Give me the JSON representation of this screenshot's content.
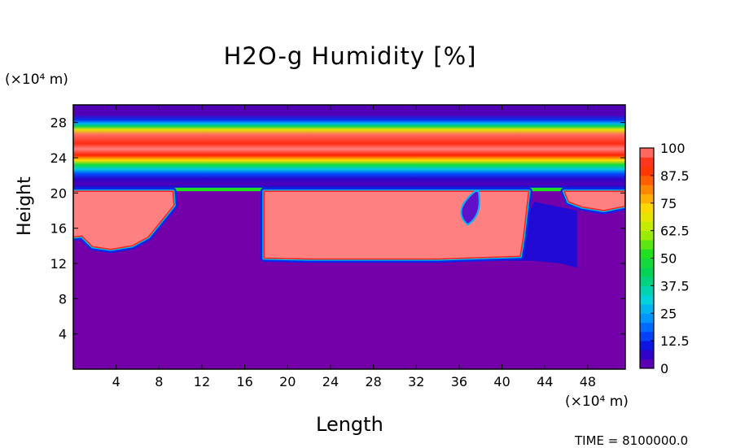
{
  "chart_data": {
    "type": "heatmap",
    "title": "H2O-g Humidity [%]",
    "xlabel": "Length",
    "ylabel": "Height",
    "x_unit_label": "(×10⁴ m)",
    "y_unit_label": "(×10⁴ m)",
    "xlim": [
      0,
      51.5
    ],
    "ylim": [
      0,
      30
    ],
    "x_ticks": [
      "4",
      "8",
      "12",
      "16",
      "20",
      "24",
      "28",
      "32",
      "36",
      "40",
      "44",
      "48"
    ],
    "y_ticks": [
      "4",
      "8",
      "12",
      "16",
      "20",
      "24",
      "28"
    ],
    "colorbar": {
      "range": [
        0,
        100
      ],
      "labels": [
        "0",
        "12.5",
        "25",
        "37.5",
        "50",
        "62.5",
        "75",
        "87.5",
        "100"
      ]
    },
    "layers": [
      {
        "height_range": [
          0,
          12
        ],
        "humidity": 0
      },
      {
        "height_range": [
          12,
          20.5
        ],
        "humidity": "0–100 (saturated regions at x≈0–10 and x≈18–42)"
      },
      {
        "height_range": [
          20.5,
          22
        ],
        "humidity": 10
      },
      {
        "height_range": [
          22,
          23.5
        ],
        "humidity": 40
      },
      {
        "height_range": [
          23.5,
          27.5
        ],
        "humidity": 95
      },
      {
        "height_range": [
          27.5,
          30
        ],
        "humidity": 15
      }
    ],
    "time_label": "TIME = 8100000.0"
  }
}
